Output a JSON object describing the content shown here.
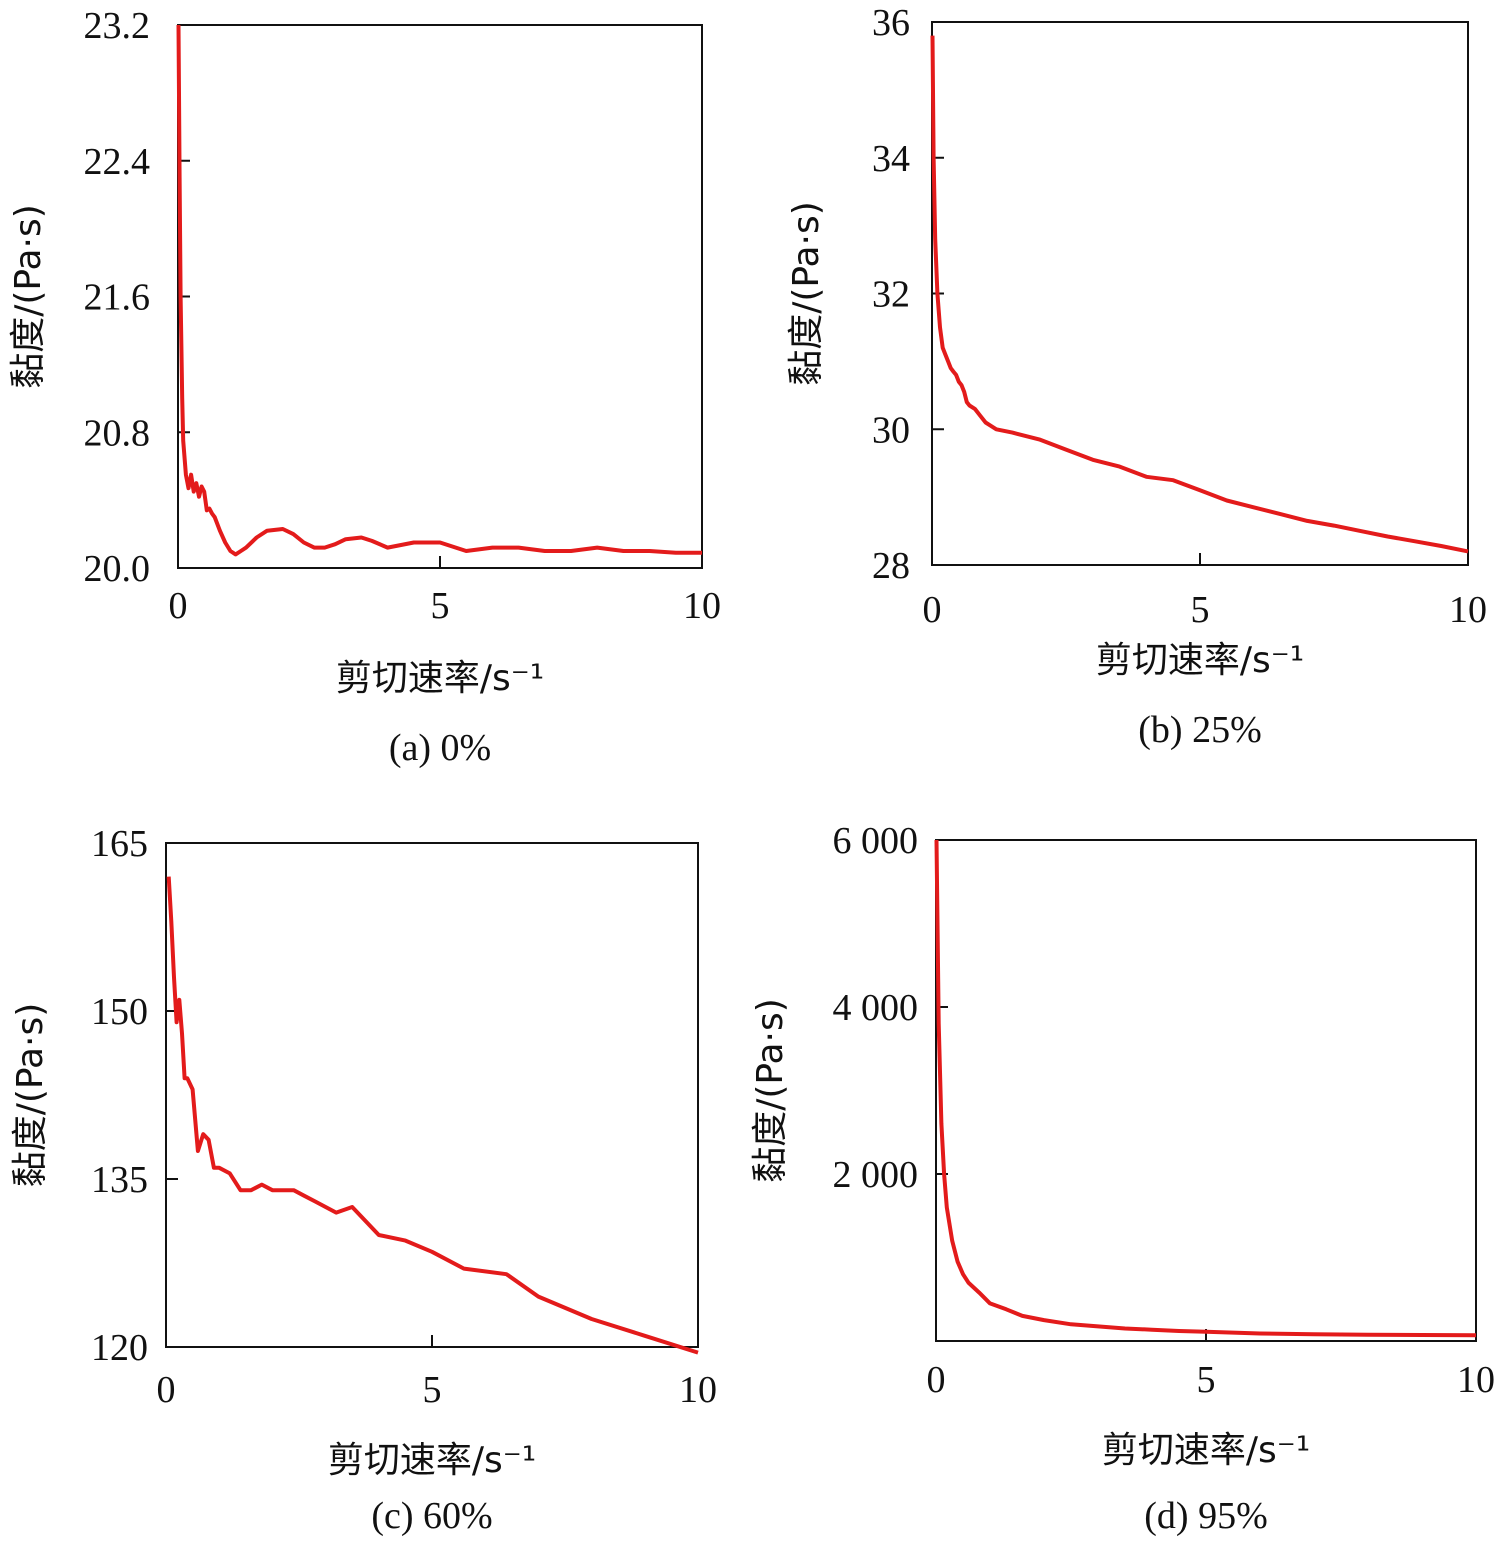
{
  "chart_data": [
    {
      "type": "line",
      "caption": "(a) 0%",
      "xlabel": "剪切速率/s⁻¹",
      "ylabel": "黏度/(Pa·s)",
      "xlim": [
        0,
        10
      ],
      "ylim": [
        20.0,
        23.2
      ],
      "xticks": [
        "0",
        "5",
        "10"
      ],
      "yticks": [
        "20.0",
        "20.8",
        "21.6",
        "22.4",
        "23.2"
      ],
      "color": "#e31b1b",
      "series": [
        {
          "x": [
            0.01,
            0.03,
            0.05,
            0.08,
            0.1,
            0.15,
            0.2,
            0.25,
            0.3,
            0.35,
            0.4,
            0.45,
            0.5,
            0.55,
            0.6,
            0.65,
            0.7,
            0.8,
            0.9,
            1.0,
            1.1,
            1.2,
            1.3,
            1.5,
            1.7,
            2.0,
            2.2,
            2.4,
            2.6,
            2.8,
            3.0,
            3.2,
            3.5,
            3.7,
            4.0,
            4.5,
            5.0,
            5.5,
            6.0,
            6.5,
            7.0,
            7.5,
            8.0,
            8.5,
            9.0,
            9.5,
            10.0
          ],
          "values": [
            23.2,
            22.3,
            21.6,
            21.0,
            20.75,
            20.55,
            20.47,
            20.55,
            20.45,
            20.5,
            20.42,
            20.48,
            20.45,
            20.34,
            20.35,
            20.32,
            20.3,
            20.22,
            20.15,
            20.1,
            20.08,
            20.1,
            20.12,
            20.18,
            20.22,
            20.23,
            20.2,
            20.15,
            20.12,
            20.12,
            20.14,
            20.17,
            20.18,
            20.16,
            20.12,
            20.15,
            20.15,
            20.1,
            20.12,
            20.12,
            20.1,
            20.1,
            20.12,
            20.1,
            20.1,
            20.09,
            20.09
          ]
        }
      ]
    },
    {
      "type": "line",
      "caption": "(b) 25%",
      "xlabel": "剪切速率/s⁻¹",
      "ylabel": "黏度/(Pa·s)",
      "xlim": [
        0,
        10
      ],
      "ylim": [
        28,
        36
      ],
      "xticks": [
        "0",
        "5",
        "10"
      ],
      "yticks": [
        "28",
        "30",
        "32",
        "34",
        "36"
      ],
      "color": "#e31b1b",
      "series": [
        {
          "x": [
            0.01,
            0.03,
            0.06,
            0.1,
            0.15,
            0.2,
            0.25,
            0.3,
            0.35,
            0.4,
            0.45,
            0.5,
            0.55,
            0.6,
            0.65,
            0.7,
            0.8,
            0.9,
            1.0,
            1.1,
            1.2,
            1.5,
            2.0,
            2.5,
            3.0,
            3.5,
            4.0,
            4.5,
            5.0,
            5.5,
            6.0,
            6.5,
            7.0,
            7.5,
            8.0,
            8.5,
            9.0,
            9.5,
            10.0
          ],
          "values": [
            35.8,
            34.0,
            32.8,
            32.0,
            31.5,
            31.2,
            31.1,
            31.0,
            30.9,
            30.85,
            30.8,
            30.7,
            30.65,
            30.55,
            30.4,
            30.35,
            30.3,
            30.2,
            30.1,
            30.05,
            30.0,
            29.95,
            29.85,
            29.7,
            29.55,
            29.45,
            29.3,
            29.25,
            29.1,
            28.95,
            28.85,
            28.75,
            28.65,
            28.58,
            28.5,
            28.42,
            28.35,
            28.28,
            28.2
          ]
        }
      ]
    },
    {
      "type": "line",
      "caption": "(c) 60%",
      "xlabel": "剪切速率/s⁻¹",
      "ylabel": "黏度/(Pa·s)",
      "xlim": [
        0,
        10
      ],
      "ylim": [
        120,
        165
      ],
      "xticks": [
        "0",
        "5",
        "10"
      ],
      "yticks": [
        "120",
        "135",
        "150",
        "165"
      ],
      "color": "#e31b1b",
      "series": [
        {
          "x": [
            0.05,
            0.1,
            0.15,
            0.2,
            0.25,
            0.3,
            0.35,
            0.4,
            0.5,
            0.6,
            0.7,
            0.8,
            0.9,
            1.0,
            1.2,
            1.4,
            1.6,
            1.8,
            2.0,
            2.4,
            2.6,
            2.8,
            3.2,
            3.5,
            4.0,
            4.5,
            5.0,
            5.6,
            6.4,
            7.0,
            8.0,
            9.0,
            10.0
          ],
          "values": [
            162,
            158,
            153,
            149,
            151,
            148,
            144,
            144,
            143,
            137.5,
            139,
            138.5,
            136,
            136,
            135.5,
            134,
            134,
            134.5,
            134,
            134,
            133.5,
            133,
            132,
            132.5,
            130,
            129.5,
            128.5,
            127,
            126.5,
            124.5,
            122.5,
            121,
            119.5
          ]
        }
      ]
    },
    {
      "type": "line",
      "caption": "(d) 95%",
      "xlabel": "剪切速率/s⁻¹",
      "ylabel": "黏度/(Pa·s)",
      "xlim": [
        0,
        10
      ],
      "ylim": [
        0,
        6000
      ],
      "xticks": [
        "0",
        "5",
        "10"
      ],
      "yticks": [
        "2 000",
        "4 000",
        "6 000"
      ],
      "color": "#e31b1b",
      "series": [
        {
          "x": [
            0.01,
            0.05,
            0.1,
            0.15,
            0.2,
            0.3,
            0.4,
            0.5,
            0.6,
            0.8,
            1.0,
            1.3,
            1.6,
            2.0,
            2.5,
            3.0,
            3.5,
            4.0,
            4.5,
            5.0,
            6.0,
            7.0,
            8.0,
            9.0,
            10.0
          ],
          "values": [
            6000,
            3800,
            2600,
            2000,
            1600,
            1200,
            950,
            800,
            700,
            580,
            450,
            380,
            300,
            250,
            200,
            175,
            150,
            135,
            120,
            110,
            90,
            80,
            75,
            72,
            70
          ]
        }
      ]
    }
  ]
}
